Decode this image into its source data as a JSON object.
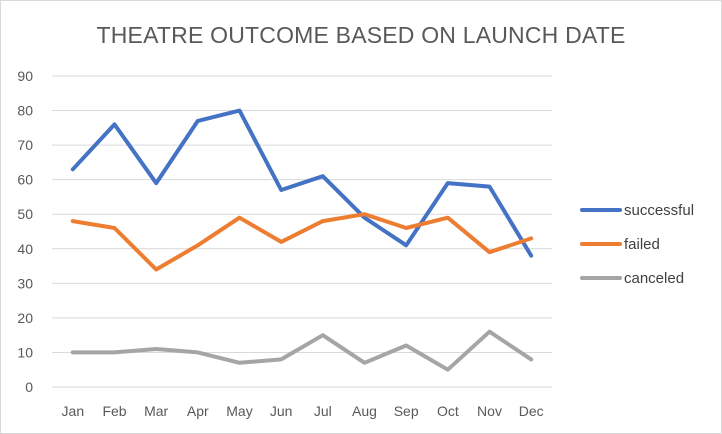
{
  "chart_data": {
    "type": "line",
    "title": "THEATRE OUTCOME BASED ON LAUNCH DATE",
    "xlabel": "",
    "ylabel": "",
    "categories": [
      "Jan",
      "Feb",
      "Mar",
      "Apr",
      "May",
      "Jun",
      "Jul",
      "Aug",
      "Sep",
      "Oct",
      "Nov",
      "Dec"
    ],
    "ylim": [
      0,
      90
    ],
    "yticks": [
      0,
      10,
      20,
      30,
      40,
      50,
      60,
      70,
      80,
      90
    ],
    "grid": true,
    "legend_position": "right",
    "series": [
      {
        "name": "successful",
        "color": "#4472c4",
        "values": [
          63,
          76,
          59,
          77,
          80,
          57,
          61,
          49,
          41,
          59,
          58,
          38
        ]
      },
      {
        "name": "failed",
        "color": "#ed7d31",
        "values": [
          48,
          46,
          34,
          41,
          49,
          42,
          48,
          50,
          46,
          49,
          39,
          43
        ]
      },
      {
        "name": "canceled",
        "color": "#a5a5a5",
        "values": [
          10,
          10,
          11,
          10,
          7,
          8,
          15,
          7,
          12,
          5,
          16,
          8
        ]
      }
    ]
  }
}
